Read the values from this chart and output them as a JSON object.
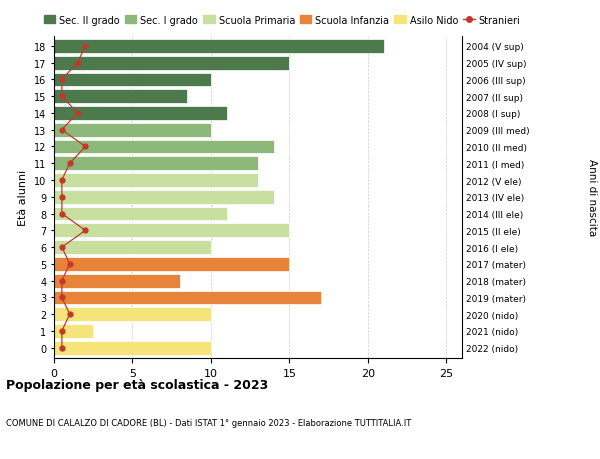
{
  "ages": [
    0,
    1,
    2,
    3,
    4,
    5,
    6,
    7,
    8,
    9,
    10,
    11,
    12,
    13,
    14,
    15,
    16,
    17,
    18
  ],
  "years": [
    "2022 (nido)",
    "2021 (nido)",
    "2020 (nido)",
    "2019 (mater)",
    "2018 (mater)",
    "2017 (mater)",
    "2016 (I ele)",
    "2015 (II ele)",
    "2014 (III ele)",
    "2013 (IV ele)",
    "2012 (V ele)",
    "2011 (I med)",
    "2010 (II med)",
    "2009 (III med)",
    "2008 (I sup)",
    "2007 (II sup)",
    "2006 (III sup)",
    "2005 (IV sup)",
    "2004 (V sup)"
  ],
  "bar_values": [
    10,
    2.5,
    10,
    17,
    8,
    15,
    10,
    15,
    11,
    14,
    13,
    13,
    14,
    10,
    11,
    8.5,
    10,
    15,
    21
  ],
  "stranieri_values": [
    0.5,
    0.5,
    1,
    0.5,
    0.5,
    1,
    0.5,
    2,
    0.5,
    0.5,
    0.5,
    1,
    2,
    0.5,
    1.5,
    0.5,
    0.5,
    1.5,
    2
  ],
  "bar_colors": [
    "#f5e47a",
    "#f5e47a",
    "#f5e47a",
    "#e8843a",
    "#e8843a",
    "#e8843a",
    "#c8dfa0",
    "#c8dfa0",
    "#c8dfa0",
    "#c8dfa0",
    "#c8dfa0",
    "#8db87a",
    "#8db87a",
    "#8db87a",
    "#4d7a4d",
    "#4d7a4d",
    "#4d7a4d",
    "#4d7a4d",
    "#4d7a4d"
  ],
  "color_sec2": "#4d7a4d",
  "color_sec1": "#8db87a",
  "color_primaria": "#c8dfa0",
  "color_infanzia": "#e8843a",
  "color_nido": "#f5e47a",
  "color_stranieri": "#c0392b",
  "ylabel": "Età alunni",
  "ylabel_right": "Anni di nascita",
  "title": "Popolazione per età scolastica - 2023",
  "subtitle": "COMUNE DI CALALZO DI CADORE (BL) - Dati ISTAT 1° gennaio 2023 - Elaborazione TUTTITALIA.IT",
  "grid_color": "#cccccc"
}
